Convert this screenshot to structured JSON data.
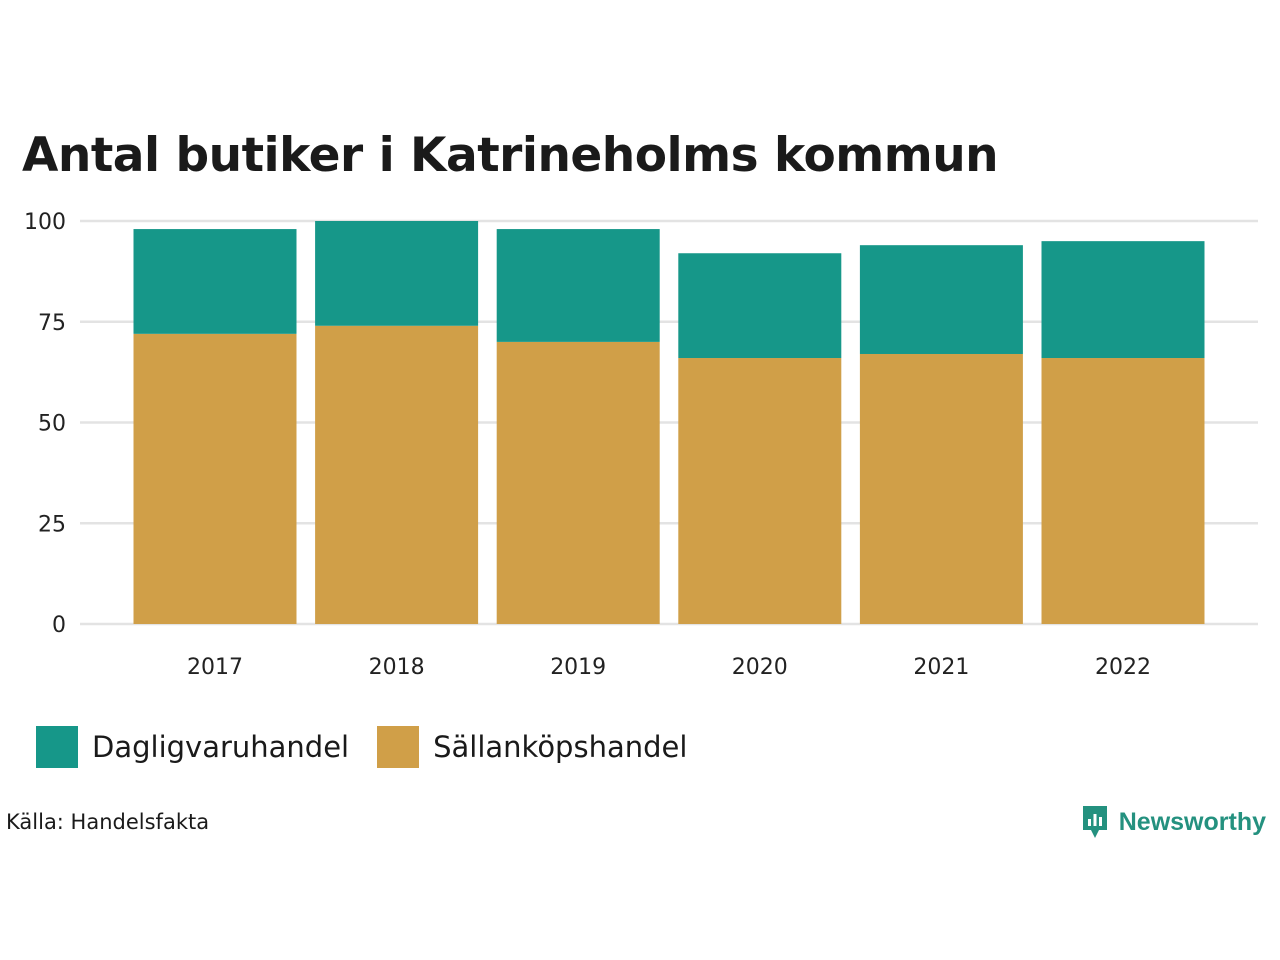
{
  "chart_data": {
    "type": "bar",
    "stacked": true,
    "title": "Antal butiker i Katrineholms kommun",
    "categories": [
      "2017",
      "2018",
      "2019",
      "2020",
      "2021",
      "2022"
    ],
    "series": [
      {
        "name": "Sällanköpshandel",
        "color": "#d09f48",
        "values": [
          72,
          74,
          70,
          66,
          67,
          66
        ]
      },
      {
        "name": "Dagligvaruhandel",
        "color": "#169789",
        "values": [
          26,
          26,
          28,
          26,
          27,
          29
        ]
      }
    ],
    "yticks": [
      0,
      25,
      50,
      75,
      100
    ],
    "ylim": [
      0,
      100
    ],
    "grid": true,
    "legend_position": "bottom-left",
    "source": "Källa: Handelsfakta"
  },
  "legend": [
    {
      "label": "Dagligvaruhandel",
      "color": "#169789"
    },
    {
      "label": "Sällanköpshandel",
      "color": "#d09f48"
    }
  ],
  "branding": {
    "name": "Newsworthy",
    "icon": "newsworthy-logo-icon",
    "color": "#24917f"
  }
}
